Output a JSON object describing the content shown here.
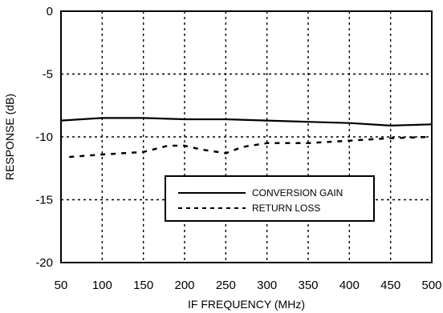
{
  "chart_data": {
    "type": "line",
    "title": "",
    "xlabel": "IF FREQUENCY (MHz)",
    "ylabel": "RESPONSE (dB)",
    "xlim": [
      50,
      500
    ],
    "ylim": [
      -20,
      0
    ],
    "x_ticks": [
      50,
      100,
      150,
      200,
      250,
      300,
      350,
      400,
      450,
      500
    ],
    "y_ticks": [
      0,
      -5,
      -10,
      -15,
      -20
    ],
    "grid": true,
    "legend_position": "lower-middle",
    "series": [
      {
        "name": "CONVERSION GAIN",
        "style": "solid",
        "color": "#000000",
        "x": [
          50,
          100,
          150,
          200,
          250,
          300,
          350,
          400,
          450,
          500
        ],
        "y": [
          -8.7,
          -8.5,
          -8.5,
          -8.6,
          -8.6,
          -8.7,
          -8.8,
          -8.9,
          -9.1,
          -9.0
        ]
      },
      {
        "name": "RETURN LOSS",
        "style": "dashed",
        "color": "#000000",
        "x": [
          60,
          100,
          150,
          180,
          200,
          220,
          250,
          270,
          300,
          350,
          400,
          450,
          500
        ],
        "y": [
          -11.6,
          -11.4,
          -11.2,
          -10.7,
          -10.7,
          -11.0,
          -11.3,
          -10.8,
          -10.5,
          -10.5,
          -10.3,
          -10.1,
          -10.0
        ]
      }
    ]
  }
}
